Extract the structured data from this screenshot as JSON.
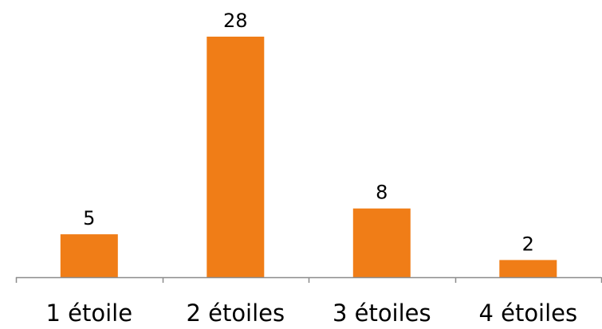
{
  "chart_data": {
    "type": "bar",
    "title": "",
    "xlabel": "",
    "ylabel": "",
    "categories": [
      "1 étoile",
      "2 étoiles",
      "3 étoiles",
      "4 étoiles"
    ],
    "values": [
      5,
      28,
      8,
      2
    ],
    "data_labels": [
      "5",
      "28",
      "8",
      "2"
    ],
    "ylim": [
      0,
      28
    ],
    "grid": false,
    "legend": "none",
    "colors": {
      "bar": "#F07D17",
      "axis": "#8C8C8C",
      "text": "#000000"
    }
  }
}
